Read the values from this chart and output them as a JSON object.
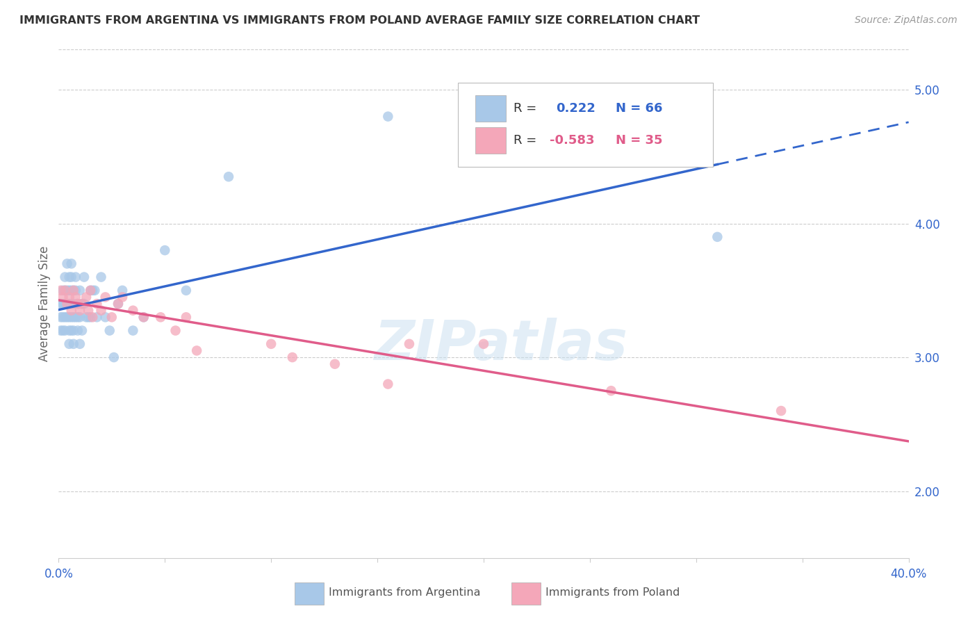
{
  "title": "IMMIGRANTS FROM ARGENTINA VS IMMIGRANTS FROM POLAND AVERAGE FAMILY SIZE CORRELATION CHART",
  "source": "Source: ZipAtlas.com",
  "ylabel": "Average Family Size",
  "xlim": [
    0.0,
    0.4
  ],
  "ylim": [
    1.5,
    5.3
  ],
  "yticks": [
    2.0,
    3.0,
    4.0,
    5.0
  ],
  "xticks": [
    0.0,
    0.05,
    0.1,
    0.15,
    0.2,
    0.25,
    0.3,
    0.35,
    0.4
  ],
  "argentina_color": "#a8c8e8",
  "poland_color": "#f4a7b9",
  "line_argentina": "#3366CC",
  "line_poland": "#E05C8A",
  "r_argentina": 0.222,
  "n_argentina": 66,
  "r_poland": -0.583,
  "n_poland": 35,
  "argentina_x": [
    0.001,
    0.001,
    0.001,
    0.002,
    0.002,
    0.002,
    0.002,
    0.003,
    0.003,
    0.003,
    0.003,
    0.003,
    0.004,
    0.004,
    0.004,
    0.004,
    0.005,
    0.005,
    0.005,
    0.005,
    0.005,
    0.005,
    0.006,
    0.006,
    0.006,
    0.006,
    0.006,
    0.006,
    0.007,
    0.007,
    0.007,
    0.007,
    0.007,
    0.008,
    0.008,
    0.008,
    0.009,
    0.009,
    0.009,
    0.01,
    0.01,
    0.01,
    0.011,
    0.011,
    0.012,
    0.012,
    0.013,
    0.014,
    0.015,
    0.015,
    0.016,
    0.017,
    0.018,
    0.02,
    0.022,
    0.024,
    0.026,
    0.028,
    0.03,
    0.035,
    0.04,
    0.05,
    0.06,
    0.08,
    0.155,
    0.31
  ],
  "argentina_y": [
    3.4,
    3.3,
    3.2,
    3.5,
    3.4,
    3.3,
    3.2,
    3.6,
    3.5,
    3.4,
    3.3,
    3.2,
    3.7,
    3.5,
    3.4,
    3.3,
    3.6,
    3.5,
    3.4,
    3.3,
    3.2,
    3.1,
    3.7,
    3.6,
    3.5,
    3.4,
    3.3,
    3.2,
    3.5,
    3.4,
    3.3,
    3.2,
    3.1,
    3.6,
    3.5,
    3.3,
    3.4,
    3.3,
    3.2,
    3.5,
    3.3,
    3.1,
    3.4,
    3.2,
    3.6,
    3.4,
    3.3,
    3.3,
    3.5,
    3.3,
    3.5,
    3.5,
    3.3,
    3.6,
    3.3,
    3.2,
    3.0,
    3.4,
    3.5,
    3.2,
    3.3,
    3.8,
    3.5,
    4.35,
    4.8,
    3.9
  ],
  "poland_x": [
    0.001,
    0.002,
    0.003,
    0.004,
    0.005,
    0.006,
    0.007,
    0.008,
    0.009,
    0.01,
    0.011,
    0.013,
    0.014,
    0.015,
    0.016,
    0.018,
    0.02,
    0.022,
    0.025,
    0.028,
    0.03,
    0.035,
    0.04,
    0.048,
    0.055,
    0.06,
    0.065,
    0.1,
    0.11,
    0.13,
    0.155,
    0.165,
    0.2,
    0.26,
    0.34
  ],
  "poland_y": [
    3.5,
    3.45,
    3.5,
    3.4,
    3.45,
    3.35,
    3.5,
    3.45,
    3.4,
    3.35,
    3.4,
    3.45,
    3.35,
    3.5,
    3.3,
    3.4,
    3.35,
    3.45,
    3.3,
    3.4,
    3.45,
    3.35,
    3.3,
    3.3,
    3.2,
    3.3,
    3.05,
    3.1,
    3.0,
    2.95,
    2.8,
    3.1,
    3.1,
    2.75,
    2.6
  ],
  "watermark": "ZIPatlas",
  "background_color": "#ffffff",
  "grid_color": "#cccccc"
}
